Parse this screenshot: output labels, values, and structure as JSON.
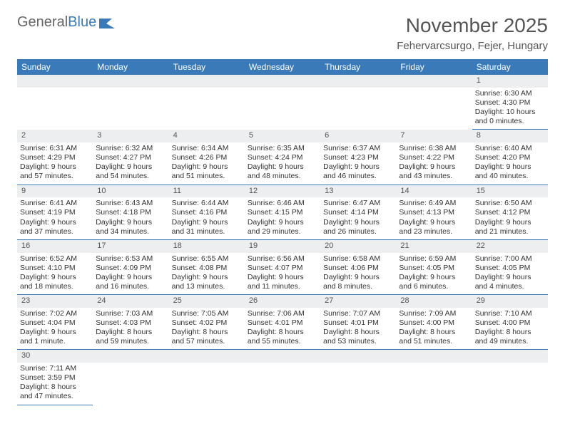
{
  "logo": {
    "text1": "General",
    "text2": "Blue"
  },
  "title": "November 2025",
  "location": "Fehervarcsurgo, Fejer, Hungary",
  "colors": {
    "header_bg": "#3a7ab8",
    "daynum_bg": "#eceeef",
    "rule": "#3a7ab8"
  },
  "weekdays": [
    "Sunday",
    "Monday",
    "Tuesday",
    "Wednesday",
    "Thursday",
    "Friday",
    "Saturday"
  ],
  "weeks": [
    [
      null,
      null,
      null,
      null,
      null,
      null,
      {
        "n": "1",
        "sr": "Sunrise: 6:30 AM",
        "ss": "Sunset: 4:30 PM",
        "dl": "Daylight: 10 hours and 0 minutes."
      }
    ],
    [
      {
        "n": "2",
        "sr": "Sunrise: 6:31 AM",
        "ss": "Sunset: 4:29 PM",
        "dl": "Daylight: 9 hours and 57 minutes."
      },
      {
        "n": "3",
        "sr": "Sunrise: 6:32 AM",
        "ss": "Sunset: 4:27 PM",
        "dl": "Daylight: 9 hours and 54 minutes."
      },
      {
        "n": "4",
        "sr": "Sunrise: 6:34 AM",
        "ss": "Sunset: 4:26 PM",
        "dl": "Daylight: 9 hours and 51 minutes."
      },
      {
        "n": "5",
        "sr": "Sunrise: 6:35 AM",
        "ss": "Sunset: 4:24 PM",
        "dl": "Daylight: 9 hours and 48 minutes."
      },
      {
        "n": "6",
        "sr": "Sunrise: 6:37 AM",
        "ss": "Sunset: 4:23 PM",
        "dl": "Daylight: 9 hours and 46 minutes."
      },
      {
        "n": "7",
        "sr": "Sunrise: 6:38 AM",
        "ss": "Sunset: 4:22 PM",
        "dl": "Daylight: 9 hours and 43 minutes."
      },
      {
        "n": "8",
        "sr": "Sunrise: 6:40 AM",
        "ss": "Sunset: 4:20 PM",
        "dl": "Daylight: 9 hours and 40 minutes."
      }
    ],
    [
      {
        "n": "9",
        "sr": "Sunrise: 6:41 AM",
        "ss": "Sunset: 4:19 PM",
        "dl": "Daylight: 9 hours and 37 minutes."
      },
      {
        "n": "10",
        "sr": "Sunrise: 6:43 AM",
        "ss": "Sunset: 4:18 PM",
        "dl": "Daylight: 9 hours and 34 minutes."
      },
      {
        "n": "11",
        "sr": "Sunrise: 6:44 AM",
        "ss": "Sunset: 4:16 PM",
        "dl": "Daylight: 9 hours and 31 minutes."
      },
      {
        "n": "12",
        "sr": "Sunrise: 6:46 AM",
        "ss": "Sunset: 4:15 PM",
        "dl": "Daylight: 9 hours and 29 minutes."
      },
      {
        "n": "13",
        "sr": "Sunrise: 6:47 AM",
        "ss": "Sunset: 4:14 PM",
        "dl": "Daylight: 9 hours and 26 minutes."
      },
      {
        "n": "14",
        "sr": "Sunrise: 6:49 AM",
        "ss": "Sunset: 4:13 PM",
        "dl": "Daylight: 9 hours and 23 minutes."
      },
      {
        "n": "15",
        "sr": "Sunrise: 6:50 AM",
        "ss": "Sunset: 4:12 PM",
        "dl": "Daylight: 9 hours and 21 minutes."
      }
    ],
    [
      {
        "n": "16",
        "sr": "Sunrise: 6:52 AM",
        "ss": "Sunset: 4:10 PM",
        "dl": "Daylight: 9 hours and 18 minutes."
      },
      {
        "n": "17",
        "sr": "Sunrise: 6:53 AM",
        "ss": "Sunset: 4:09 PM",
        "dl": "Daylight: 9 hours and 16 minutes."
      },
      {
        "n": "18",
        "sr": "Sunrise: 6:55 AM",
        "ss": "Sunset: 4:08 PM",
        "dl": "Daylight: 9 hours and 13 minutes."
      },
      {
        "n": "19",
        "sr": "Sunrise: 6:56 AM",
        "ss": "Sunset: 4:07 PM",
        "dl": "Daylight: 9 hours and 11 minutes."
      },
      {
        "n": "20",
        "sr": "Sunrise: 6:58 AM",
        "ss": "Sunset: 4:06 PM",
        "dl": "Daylight: 9 hours and 8 minutes."
      },
      {
        "n": "21",
        "sr": "Sunrise: 6:59 AM",
        "ss": "Sunset: 4:05 PM",
        "dl": "Daylight: 9 hours and 6 minutes."
      },
      {
        "n": "22",
        "sr": "Sunrise: 7:00 AM",
        "ss": "Sunset: 4:05 PM",
        "dl": "Daylight: 9 hours and 4 minutes."
      }
    ],
    [
      {
        "n": "23",
        "sr": "Sunrise: 7:02 AM",
        "ss": "Sunset: 4:04 PM",
        "dl": "Daylight: 9 hours and 1 minute."
      },
      {
        "n": "24",
        "sr": "Sunrise: 7:03 AM",
        "ss": "Sunset: 4:03 PM",
        "dl": "Daylight: 8 hours and 59 minutes."
      },
      {
        "n": "25",
        "sr": "Sunrise: 7:05 AM",
        "ss": "Sunset: 4:02 PM",
        "dl": "Daylight: 8 hours and 57 minutes."
      },
      {
        "n": "26",
        "sr": "Sunrise: 7:06 AM",
        "ss": "Sunset: 4:01 PM",
        "dl": "Daylight: 8 hours and 55 minutes."
      },
      {
        "n": "27",
        "sr": "Sunrise: 7:07 AM",
        "ss": "Sunset: 4:01 PM",
        "dl": "Daylight: 8 hours and 53 minutes."
      },
      {
        "n": "28",
        "sr": "Sunrise: 7:09 AM",
        "ss": "Sunset: 4:00 PM",
        "dl": "Daylight: 8 hours and 51 minutes."
      },
      {
        "n": "29",
        "sr": "Sunrise: 7:10 AM",
        "ss": "Sunset: 4:00 PM",
        "dl": "Daylight: 8 hours and 49 minutes."
      }
    ],
    [
      {
        "n": "30",
        "sr": "Sunrise: 7:11 AM",
        "ss": "Sunset: 3:59 PM",
        "dl": "Daylight: 8 hours and 47 minutes."
      },
      null,
      null,
      null,
      null,
      null,
      null
    ]
  ]
}
